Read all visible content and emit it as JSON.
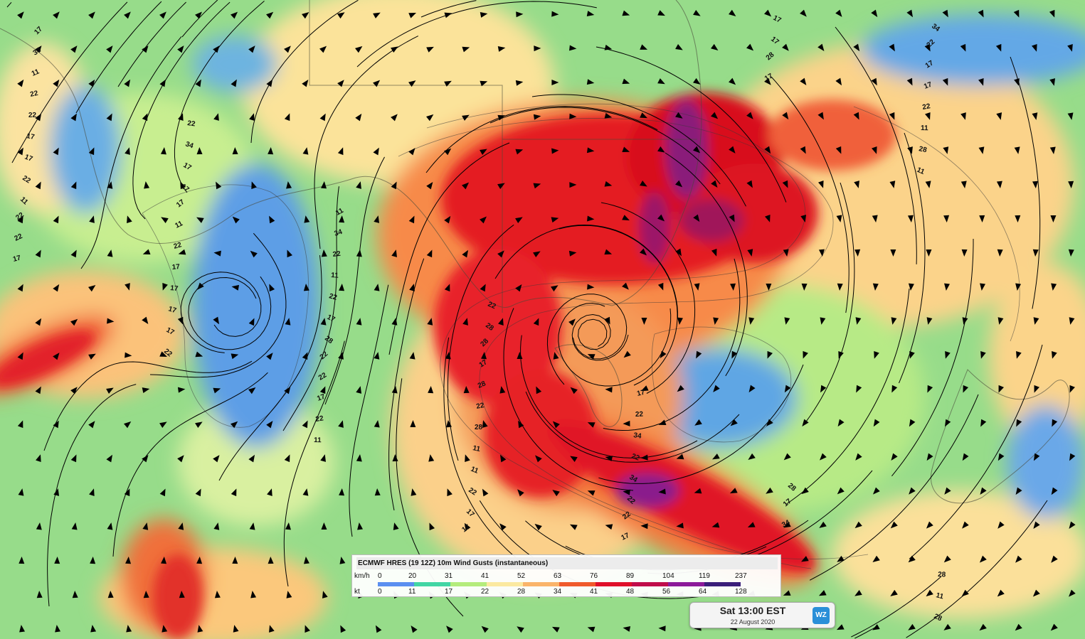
{
  "legend": {
    "title": "ECMWF HRES (19 12Z) 10m Wind Gusts (instantaneous)",
    "kmh_label": "km/h",
    "kt_label": "kt",
    "kmh": [
      "0",
      "20",
      "31",
      "41",
      "52",
      "63",
      "76",
      "89",
      "104",
      "119",
      "237"
    ],
    "kt": [
      "0",
      "11",
      "17",
      "22",
      "28",
      "34",
      "41",
      "48",
      "56",
      "64",
      "128"
    ],
    "colors": [
      "#5b8ff0",
      "#42d6a4",
      "#b4ec7c",
      "#fbe9a0",
      "#fab46a",
      "#f05a2c",
      "#e0102a",
      "#c00c4a",
      "#8c1a9a",
      "#3a1e7a"
    ]
  },
  "time": {
    "main": "Sat 13:00 EST",
    "date": "22 August 2020"
  },
  "brand": {
    "logo_text": "WZ"
  },
  "contour_labels": [
    "17",
    "22",
    "11",
    "22",
    "17",
    "28",
    "28",
    "34",
    "34",
    "34",
    "28",
    "22",
    "17",
    "11",
    "11",
    "17",
    "22",
    "28",
    "34",
    "34",
    "28",
    "22",
    "17",
    "11",
    "17",
    "22",
    "28",
    "34",
    "22",
    "17",
    "22",
    "28",
    "34",
    "28",
    "22",
    "17",
    "11",
    "17",
    "22",
    "22",
    "11",
    "17",
    "17",
    "22",
    "28",
    "28",
    "22",
    "17",
    "17",
    "22",
    "17",
    "22",
    "11",
    "17",
    "17",
    "22",
    "11",
    "17",
    "22",
    "11",
    "28",
    "17",
    "11",
    "22",
    "17",
    "17",
    "22",
    "28",
    "28",
    "28",
    "22",
    "17",
    "22",
    "17",
    "11",
    "17",
    "11",
    "17",
    "22",
    "11",
    "17"
  ]
}
